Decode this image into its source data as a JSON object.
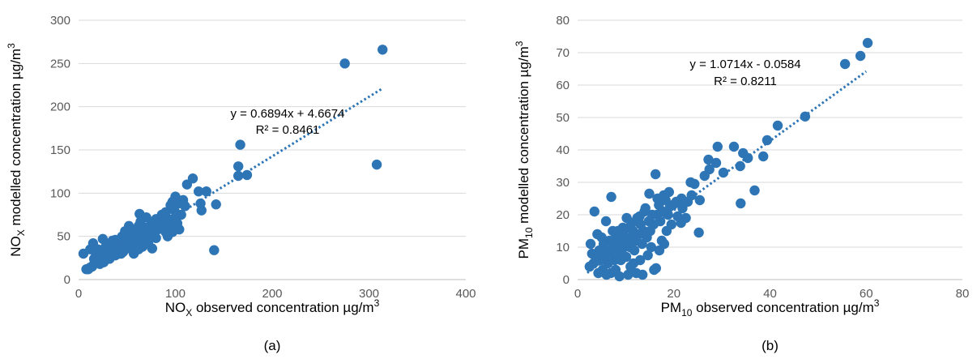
{
  "colors": {
    "marker": "#2E75B6",
    "trend": "#2E75B6",
    "grid": "#D9D9D9",
    "axis": "#BFBFBF"
  },
  "chart_data": [
    {
      "type": "scatter",
      "panel_label": "(a)",
      "xlabel": {
        "prefix": "NO",
        "sub": "X",
        "suffix": " observed concentration µg/m",
        "sup": "3"
      },
      "ylabel": {
        "prefix": "NO",
        "sub": "X",
        "suffix": " modelled concentration µg/m",
        "sup": "3"
      },
      "xlim": [
        0,
        400
      ],
      "ylim": [
        0,
        300
      ],
      "xticks": [
        0,
        100,
        200,
        300,
        400
      ],
      "yticks": [
        0,
        50,
        100,
        150,
        200,
        250,
        300
      ],
      "grid": "horizontal",
      "equation": "y = 0.6894x + 4.6674",
      "r2": "R² = 0.8461",
      "trendline": {
        "slope": 0.6894,
        "intercept": 4.6674,
        "x_range": [
          5,
          313
        ]
      },
      "points": [
        [
          314,
          266
        ],
        [
          275,
          250
        ],
        [
          308,
          133
        ],
        [
          167,
          156
        ],
        [
          165,
          131
        ],
        [
          165,
          120
        ],
        [
          174,
          121
        ],
        [
          142,
          87
        ],
        [
          140,
          34
        ],
        [
          118,
          117
        ],
        [
          112,
          110
        ],
        [
          124,
          102
        ],
        [
          132,
          102
        ],
        [
          126,
          88
        ],
        [
          127,
          80
        ],
        [
          110,
          85
        ],
        [
          108,
          92
        ],
        [
          100,
          96
        ],
        [
          97,
          90
        ],
        [
          103,
          88
        ],
        [
          95,
          86
        ],
        [
          99,
          80
        ],
        [
          90,
          78
        ],
        [
          93,
          70
        ],
        [
          86,
          75
        ],
        [
          88,
          65
        ],
        [
          94,
          60
        ],
        [
          97,
          55
        ],
        [
          102,
          65
        ],
        [
          106,
          75
        ],
        [
          104,
          58
        ],
        [
          80,
          70
        ],
        [
          77,
          62
        ],
        [
          82,
          58
        ],
        [
          74,
          55
        ],
        [
          70,
          60
        ],
        [
          72,
          50
        ],
        [
          68,
          48
        ],
        [
          65,
          55
        ],
        [
          63,
          76
        ],
        [
          62,
          62
        ],
        [
          60,
          45
        ],
        [
          66,
          38
        ],
        [
          72,
          42
        ],
        [
          76,
          36
        ],
        [
          80,
          48
        ],
        [
          58,
          52
        ],
        [
          55,
          58
        ],
        [
          52,
          62
        ],
        [
          50,
          48
        ],
        [
          48,
          40
        ],
        [
          46,
          36
        ],
        [
          44,
          30
        ],
        [
          42,
          42
        ],
        [
          40,
          35
        ],
        [
          38,
          28
        ],
        [
          36,
          40
        ],
        [
          34,
          33
        ],
        [
          32,
          38
        ],
        [
          30,
          25
        ],
        [
          28,
          30
        ],
        [
          26,
          28
        ],
        [
          24,
          22
        ],
        [
          22,
          30
        ],
        [
          20,
          25
        ],
        [
          18,
          20
        ],
        [
          16,
          18
        ],
        [
          14,
          15
        ],
        [
          12,
          14
        ],
        [
          10,
          12
        ],
        [
          8,
          12
        ],
        [
          25,
          47
        ],
        [
          15,
          42
        ],
        [
          12,
          35
        ],
        [
          5,
          30
        ],
        [
          20,
          35
        ],
        [
          30,
          32
        ],
        [
          35,
          45
        ],
        [
          45,
          50
        ],
        [
          55,
          40
        ],
        [
          62,
          35
        ],
        [
          57,
          30
        ],
        [
          85,
          60
        ],
        [
          90,
          55
        ],
        [
          92,
          50
        ],
        [
          78,
          66
        ],
        [
          70,
          72
        ],
        [
          64,
          67
        ],
        [
          56,
          57
        ],
        [
          52,
          52
        ],
        [
          48,
          56
        ],
        [
          44,
          46
        ],
        [
          40,
          45
        ],
        [
          38,
          46
        ],
        [
          34,
          42
        ],
        [
          28,
          38
        ],
        [
          24,
          32
        ],
        [
          18,
          28
        ],
        [
          16,
          24
        ],
        [
          22,
          18
        ],
        [
          26,
          20
        ],
        [
          32,
          24
        ],
        [
          36,
          28
        ],
        [
          42,
          30
        ],
        [
          46,
          32
        ],
        [
          50,
          36
        ],
        [
          54,
          44
        ],
        [
          60,
          50
        ],
        [
          66,
          50
        ],
        [
          74,
          62
        ],
        [
          84,
          68
        ],
        [
          96,
          66
        ],
        [
          100,
          72
        ]
      ]
    },
    {
      "type": "scatter",
      "panel_label": "(b)",
      "xlabel": {
        "prefix": "PM",
        "sub": "10",
        "suffix": " observed concentration µg/m",
        "sup": "3"
      },
      "ylabel": {
        "prefix": "PM",
        "sub": "10",
        "suffix": " modelled concentration µg/m",
        "sup": "3"
      },
      "xlim": [
        0,
        80
      ],
      "ylim": [
        0,
        80
      ],
      "xticks": [
        0,
        20,
        40,
        60,
        80
      ],
      "yticks": [
        0,
        10,
        20,
        30,
        40,
        50,
        60,
        70,
        80
      ],
      "grid": "horizontal",
      "equation": "y = 1.0714x - 0.0584",
      "r2": "R² = 0.8211",
      "trendline": {
        "slope": 1.0714,
        "intercept": -0.0584,
        "x_range": [
          2,
          60
        ]
      },
      "points": [
        [
          60.3,
          73
        ],
        [
          58.8,
          69
        ],
        [
          55.6,
          66.5
        ],
        [
          47.3,
          50.3
        ],
        [
          41.6,
          47.5
        ],
        [
          39.4,
          43
        ],
        [
          38.6,
          38
        ],
        [
          36.8,
          27.5
        ],
        [
          35.4,
          37.5
        ],
        [
          34.4,
          39
        ],
        [
          33.8,
          35
        ],
        [
          33.9,
          23.5
        ],
        [
          32.5,
          41
        ],
        [
          30.3,
          33
        ],
        [
          29.1,
          41
        ],
        [
          28.8,
          36
        ],
        [
          27.4,
          34
        ],
        [
          27.2,
          37
        ],
        [
          26.4,
          32
        ],
        [
          25.4,
          24.5
        ],
        [
          25.2,
          14.5
        ],
        [
          24.3,
          29.5
        ],
        [
          23.7,
          26
        ],
        [
          23.5,
          30
        ],
        [
          22.9,
          24
        ],
        [
          22.5,
          19
        ],
        [
          21.8,
          22
        ],
        [
          21.6,
          25
        ],
        [
          20.5,
          24
        ],
        [
          19.8,
          23
        ],
        [
          19.2,
          22.5
        ],
        [
          18.8,
          20
        ],
        [
          18.3,
          24.5
        ],
        [
          17.7,
          21
        ],
        [
          17.2,
          18
        ],
        [
          16.9,
          23
        ],
        [
          16.5,
          20
        ],
        [
          16.2,
          32.5
        ],
        [
          15.8,
          17
        ],
        [
          15.5,
          20
        ],
        [
          15.1,
          15
        ],
        [
          14.8,
          18
        ],
        [
          14.4,
          13
        ],
        [
          14.1,
          22
        ],
        [
          13.7,
          15
        ],
        [
          13.4,
          11
        ],
        [
          13.1,
          17
        ],
        [
          12.8,
          14
        ],
        [
          12.4,
          19
        ],
        [
          12.1,
          12
        ],
        [
          11.8,
          9
        ],
        [
          11.5,
          15
        ],
        [
          11.2,
          13
        ],
        [
          10.9,
          10
        ],
        [
          10.6,
          16
        ],
        [
          10.3,
          12
        ],
        [
          10.1,
          7
        ],
        [
          9.8,
          11
        ],
        [
          9.5,
          14
        ],
        [
          9.2,
          9
        ],
        [
          9.0,
          6
        ],
        [
          8.8,
          12
        ],
        [
          8.5,
          10
        ],
        [
          8.2,
          8
        ],
        [
          8.0,
          13
        ],
        [
          7.7,
          6
        ],
        [
          7.5,
          10
        ],
        [
          7.3,
          15
        ],
        [
          7.0,
          25.5
        ],
        [
          6.8,
          8
        ],
        [
          6.6,
          12
        ],
        [
          6.3,
          5
        ],
        [
          6.1,
          9
        ],
        [
          5.9,
          18
        ],
        [
          5.6,
          7
        ],
        [
          5.4,
          11
        ],
        [
          5.2,
          3
        ],
        [
          5.0,
          13
        ],
        [
          4.8,
          6
        ],
        [
          4.5,
          9
        ],
        [
          4.3,
          2
        ],
        [
          4.1,
          14
        ],
        [
          3.8,
          7
        ],
        [
          3.5,
          21
        ],
        [
          3.3,
          5
        ],
        [
          3.0,
          8
        ],
        [
          2.7,
          11
        ],
        [
          2.5,
          4
        ],
        [
          12.2,
          2
        ],
        [
          13.5,
          1.5
        ],
        [
          16.3,
          3.5
        ],
        [
          15.9,
          3
        ],
        [
          8.7,
          1
        ],
        [
          10.5,
          1.5
        ],
        [
          11.6,
          5
        ],
        [
          17.5,
          12
        ],
        [
          18.5,
          15
        ],
        [
          19.5,
          17
        ],
        [
          20.8,
          19.5
        ],
        [
          21.5,
          17.5
        ],
        [
          19.0,
          27
        ],
        [
          17.9,
          26
        ],
        [
          16.6,
          25
        ],
        [
          14.9,
          26.5
        ],
        [
          13.9,
          21
        ],
        [
          12.9,
          19.5
        ],
        [
          11.3,
          17.5
        ],
        [
          10.2,
          19
        ],
        [
          9.4,
          16
        ],
        [
          8.4,
          15
        ],
        [
          7.9,
          3
        ],
        [
          6.9,
          2
        ],
        [
          6.0,
          1.5
        ],
        [
          14.6,
          7.5
        ],
        [
          13.0,
          6
        ],
        [
          11.0,
          4
        ],
        [
          17.0,
          9
        ],
        [
          18.0,
          11
        ],
        [
          15.3,
          10
        ]
      ]
    }
  ]
}
